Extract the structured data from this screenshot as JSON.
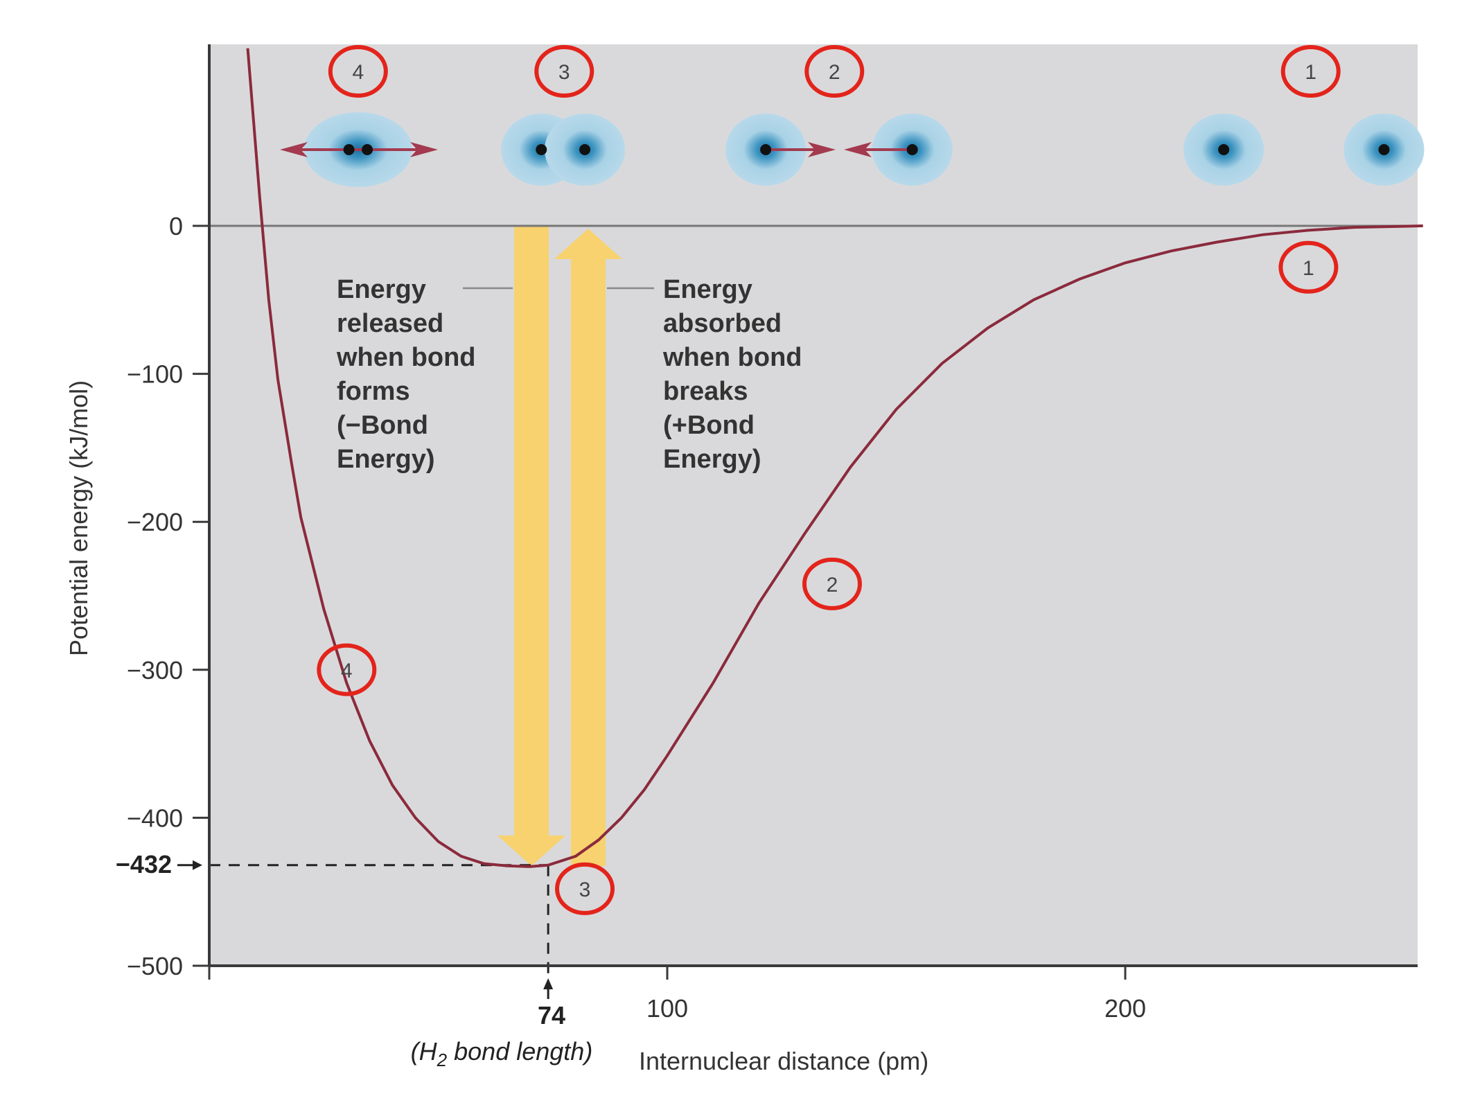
{
  "chart_data": {
    "type": "line",
    "title": "",
    "xlabel": "Internuclear distance (pm)",
    "ylabel": "Potential energy (kJ/mol)",
    "xlim": [
      0,
      265
    ],
    "ylim": [
      -500,
      110
    ],
    "x_ticks": [
      {
        "value": 100,
        "label": "100"
      },
      {
        "value": 200,
        "label": "200"
      }
    ],
    "y_ticks": [
      {
        "value": 0,
        "label": "0"
      },
      {
        "value": -100,
        "label": "−100"
      },
      {
        "value": -200,
        "label": "−200"
      },
      {
        "value": -300,
        "label": "−300"
      },
      {
        "value": -400,
        "label": "−400"
      },
      {
        "value": -500,
        "label": "−500"
      }
    ],
    "series": [
      {
        "name": "H2 potential energy curve",
        "color": "#8b2a3c",
        "x": [
          8.4,
          11,
          13,
          15,
          18,
          20,
          25,
          30,
          35,
          40,
          45,
          50,
          55,
          60,
          65,
          70,
          74,
          80,
          85,
          90,
          95,
          100,
          110,
          120,
          130,
          140,
          150,
          160,
          170,
          180,
          190,
          200,
          210,
          220,
          230,
          240,
          250,
          265
        ],
        "y": [
          120,
          20,
          -50,
          -104,
          -161,
          -197,
          -259,
          -309,
          -348,
          -378,
          -400,
          -416,
          -426,
          -431,
          -432.5,
          -433,
          -432,
          -426,
          -415,
          -400,
          -381,
          -358,
          -309,
          -255,
          -208,
          -163,
          -124,
          -93,
          -69,
          -50,
          -36,
          -25,
          -17,
          -11,
          -6,
          -3,
          -1,
          0
        ]
      }
    ],
    "annotations": {
      "bond_energy": {
        "value": -432,
        "label": "−432"
      },
      "bond_length": {
        "value": 74,
        "label": "74",
        "caption_main": "(H",
        "caption_sub": "2",
        "caption_rest": " bond length)"
      },
      "released_text": [
        "Energy",
        "released",
        "when bond",
        "forms",
        "(−Bond",
        "Energy)"
      ],
      "absorbed_text": [
        "Energy",
        "absorbed",
        "when bond",
        "breaks",
        "(+Bond",
        "Energy)"
      ]
    },
    "curve_markers": [
      {
        "label": "1",
        "x": 240,
        "y": -28
      },
      {
        "label": "2",
        "x": 136,
        "y": -242
      },
      {
        "label": "3",
        "x": 82,
        "y": -448
      },
      {
        "label": "4",
        "x": 30,
        "y": -300
      }
    ],
    "top_markers": [
      {
        "label": "4",
        "x": 32.5
      },
      {
        "label": "3",
        "x": 77.5
      },
      {
        "label": "2",
        "x": 136.5
      },
      {
        "label": "1",
        "x": 240.5
      }
    ],
    "atom_pairs": [
      {
        "stage": "4",
        "nuclei_x": [
          30.5,
          34.5
        ],
        "arrows": "out"
      },
      {
        "stage": "3",
        "nuclei_x": [
          72.5,
          82
        ],
        "arrows": "none"
      },
      {
        "stage": "2",
        "nuclei_x": [
          121.5,
          153.5
        ],
        "arrows": "in"
      },
      {
        "stage": "1",
        "nuclei_x": [
          221.5,
          256.5
        ],
        "arrows": "none"
      }
    ],
    "colors": {
      "plot_background": "#d9d9db",
      "curve": "#8b2a3c",
      "marker_ring": "#e3241b",
      "energy_arrow": "#f7d26e",
      "electron_cloud": "#a9d2e6",
      "cloud_core": "#2f88b8",
      "axis": "#3a3a3a",
      "zero_line": "#777777",
      "force_arrow": "#a33a4f"
    }
  }
}
